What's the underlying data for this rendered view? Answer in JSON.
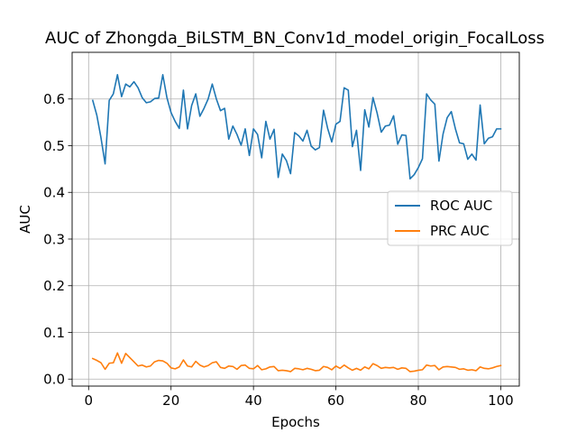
{
  "chart_data": {
    "type": "line",
    "title": "AUC of Zhongda_BiLSTM_BN_Conv1d_model_origin_FocalLoss",
    "xlabel": "Epochs",
    "ylabel": "AUC",
    "xlim": [
      -4,
      104.5
    ],
    "ylim": [
      -0.015,
      0.7
    ],
    "xticks": [
      0,
      20,
      40,
      60,
      80,
      100
    ],
    "yticks": [
      0.0,
      0.1,
      0.2,
      0.3,
      0.4,
      0.5,
      0.6
    ],
    "xtick_labels": [
      "0",
      "20",
      "40",
      "60",
      "80",
      "100"
    ],
    "ytick_labels": [
      "0.0",
      "0.1",
      "0.2",
      "0.3",
      "0.4",
      "0.5",
      "0.6"
    ],
    "grid": true,
    "legend_position": "center-right",
    "series": [
      {
        "name": "ROC AUC",
        "color": "#1f77b4",
        "x": [
          1,
          2,
          3,
          4,
          5,
          6,
          7,
          8,
          9,
          10,
          11,
          12,
          13,
          14,
          15,
          16,
          17,
          18,
          19,
          20,
          21,
          22,
          23,
          24,
          25,
          26,
          27,
          28,
          29,
          30,
          31,
          32,
          33,
          34,
          35,
          36,
          37,
          38,
          39,
          40,
          41,
          42,
          43,
          44,
          45,
          46,
          47,
          48,
          49,
          50,
          51,
          52,
          53,
          54,
          55,
          56,
          57,
          58,
          59,
          60,
          61,
          62,
          63,
          64,
          65,
          66,
          67,
          68,
          69,
          70,
          71,
          72,
          73,
          74,
          75,
          76,
          77,
          78,
          79,
          80,
          81,
          82,
          83,
          84,
          85,
          86,
          87,
          88,
          89,
          90,
          91,
          92,
          93,
          94,
          95,
          96,
          97,
          98,
          99,
          100
        ],
        "values": [
          0.597,
          0.565,
          0.517,
          0.461,
          0.597,
          0.611,
          0.652,
          0.605,
          0.632,
          0.626,
          0.637,
          0.624,
          0.603,
          0.592,
          0.594,
          0.601,
          0.602,
          0.652,
          0.603,
          0.571,
          0.552,
          0.537,
          0.619,
          0.536,
          0.586,
          0.611,
          0.563,
          0.58,
          0.6,
          0.632,
          0.6,
          0.575,
          0.58,
          0.514,
          0.542,
          0.524,
          0.501,
          0.536,
          0.479,
          0.536,
          0.524,
          0.474,
          0.552,
          0.514,
          0.535,
          0.432,
          0.482,
          0.468,
          0.44,
          0.528,
          0.521,
          0.51,
          0.533,
          0.499,
          0.491,
          0.496,
          0.576,
          0.537,
          0.508,
          0.546,
          0.552,
          0.624,
          0.619,
          0.498,
          0.533,
          0.447,
          0.577,
          0.54,
          0.603,
          0.57,
          0.529,
          0.542,
          0.544,
          0.564,
          0.503,
          0.523,
          0.522,
          0.429,
          0.438,
          0.453,
          0.472,
          0.611,
          0.598,
          0.589,
          0.467,
          0.525,
          0.56,
          0.573,
          0.536,
          0.506,
          0.504,
          0.471,
          0.482,
          0.469,
          0.587,
          0.504,
          0.516,
          0.519,
          0.536,
          0.536
        ]
      },
      {
        "name": "PRC AUC",
        "color": "#ff7f0e",
        "x": [
          1,
          2,
          3,
          4,
          5,
          6,
          7,
          8,
          9,
          10,
          11,
          12,
          13,
          14,
          15,
          16,
          17,
          18,
          19,
          20,
          21,
          22,
          23,
          24,
          25,
          26,
          27,
          28,
          29,
          30,
          31,
          32,
          33,
          34,
          35,
          36,
          37,
          38,
          39,
          40,
          41,
          42,
          43,
          44,
          45,
          46,
          47,
          48,
          49,
          50,
          51,
          52,
          53,
          54,
          55,
          56,
          57,
          58,
          59,
          60,
          61,
          62,
          63,
          64,
          65,
          66,
          67,
          68,
          69,
          70,
          71,
          72,
          73,
          74,
          75,
          76,
          77,
          78,
          79,
          80,
          81,
          82,
          83,
          84,
          85,
          86,
          87,
          88,
          89,
          90,
          91,
          92,
          93,
          94,
          95,
          96,
          97,
          98,
          99,
          100
        ],
        "values": [
          0.044,
          0.04,
          0.035,
          0.021,
          0.034,
          0.035,
          0.056,
          0.034,
          0.055,
          0.046,
          0.037,
          0.028,
          0.03,
          0.026,
          0.028,
          0.037,
          0.04,
          0.039,
          0.034,
          0.024,
          0.022,
          0.026,
          0.041,
          0.028,
          0.026,
          0.038,
          0.03,
          0.026,
          0.029,
          0.035,
          0.037,
          0.025,
          0.023,
          0.028,
          0.027,
          0.021,
          0.029,
          0.03,
          0.023,
          0.022,
          0.029,
          0.02,
          0.022,
          0.026,
          0.027,
          0.018,
          0.019,
          0.018,
          0.016,
          0.023,
          0.022,
          0.02,
          0.023,
          0.021,
          0.018,
          0.019,
          0.027,
          0.025,
          0.02,
          0.028,
          0.023,
          0.03,
          0.024,
          0.019,
          0.023,
          0.019,
          0.026,
          0.022,
          0.033,
          0.029,
          0.023,
          0.025,
          0.024,
          0.025,
          0.021,
          0.024,
          0.023,
          0.016,
          0.017,
          0.019,
          0.02,
          0.03,
          0.028,
          0.029,
          0.02,
          0.026,
          0.027,
          0.026,
          0.025,
          0.021,
          0.022,
          0.019,
          0.02,
          0.018,
          0.026,
          0.023,
          0.022,
          0.024,
          0.027,
          0.029
        ]
      }
    ]
  }
}
